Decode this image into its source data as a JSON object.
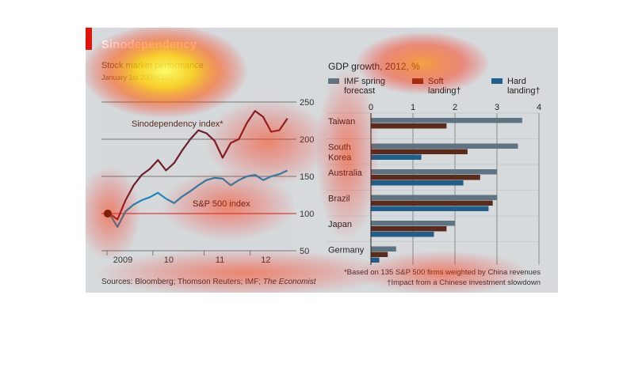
{
  "figure": {
    "title": "Sinodependency",
    "footer": {
      "sources": "Sources: Bloomberg; Thomson Reuters; IMF;",
      "sources_italic": "The Economist",
      "note1": "*Based on 135 S&P 500 firms weighted by China revenues",
      "note2": "†Impact from a Chinese investment slowdown"
    }
  },
  "colors": {
    "sino": "#6e1f2b",
    "sp": "#1b87b5",
    "hundred_line": "#e3120b",
    "imf": "#5f7482",
    "soft": "#5a2a1c",
    "hard": "#1f5f8a"
  },
  "left_chart": {
    "subtitle1": "Stock market performance",
    "subtitle2": "January 1st 2009=100"
  },
  "right_chart": {
    "title": "GDP growth, 2012, %"
  },
  "chart_data": [
    {
      "type": "line",
      "title": "Stock market performance",
      "subtitle": "January 1st 2009=100",
      "x_ticks": [
        "2009",
        "10",
        "11",
        "12"
      ],
      "y_ticks": [
        250,
        200,
        150,
        100,
        50
      ],
      "ylim": [
        50,
        250
      ],
      "reference_line": 100,
      "series": [
        {
          "name": "Sinodependency index*",
          "x": [
            2009.0,
            2009.15,
            2009.3,
            2009.45,
            2009.6,
            2009.75,
            2009.9,
            2010.05,
            2010.2,
            2010.35,
            2010.5,
            2010.65,
            2010.8,
            2010.95,
            2011.1,
            2011.25,
            2011.4,
            2011.55,
            2011.7,
            2011.85,
            2012.0,
            2012.15,
            2012.3
          ],
          "values": [
            100,
            92,
            118,
            138,
            152,
            160,
            172,
            158,
            168,
            185,
            200,
            212,
            208,
            198,
            175,
            195,
            200,
            222,
            238,
            230,
            210,
            212,
            228
          ]
        },
        {
          "name": "S&P 500 index",
          "x": [
            2009.0,
            2009.15,
            2009.3,
            2009.45,
            2009.6,
            2009.75,
            2009.9,
            2010.05,
            2010.2,
            2010.35,
            2010.5,
            2010.65,
            2010.8,
            2010.95,
            2011.1,
            2011.25,
            2011.4,
            2011.55,
            2011.7,
            2011.85,
            2012.0,
            2012.15,
            2012.3
          ],
          "values": [
            100,
            82,
            103,
            112,
            118,
            122,
            128,
            120,
            114,
            123,
            130,
            138,
            145,
            148,
            147,
            138,
            145,
            150,
            152,
            145,
            150,
            153,
            158
          ]
        }
      ]
    },
    {
      "type": "bar",
      "orientation": "horizontal",
      "title": "GDP growth, 2012, %",
      "categories": [
        "Taiwan",
        "South Korea",
        "Australia",
        "Brazil",
        "Japan",
        "Germany"
      ],
      "category_lines": [
        [
          "Taiwan"
        ],
        [
          "South",
          "Korea"
        ],
        [
          "Australia"
        ],
        [
          "Brazil"
        ],
        [
          "Japan"
        ],
        [
          "Germany"
        ]
      ],
      "xlim": [
        0,
        4
      ],
      "x_ticks": [
        0,
        1,
        2,
        3,
        4
      ],
      "series": [
        {
          "name": "IMF spring forecast",
          "legend_lines": [
            "IMF spring",
            "forecast"
          ],
          "values": [
            3.6,
            3.5,
            3.0,
            3.0,
            2.0,
            0.6
          ]
        },
        {
          "name": "Soft landing†",
          "legend_lines": [
            "Soft",
            "landing†"
          ],
          "values": [
            1.8,
            2.3,
            2.6,
            2.9,
            1.8,
            0.4
          ]
        },
        {
          "name": "Hard landing†",
          "legend_lines": [
            "Hard",
            "landing†"
          ],
          "values": [
            0.0,
            1.2,
            2.2,
            2.8,
            1.5,
            0.2
          ]
        }
      ]
    }
  ]
}
